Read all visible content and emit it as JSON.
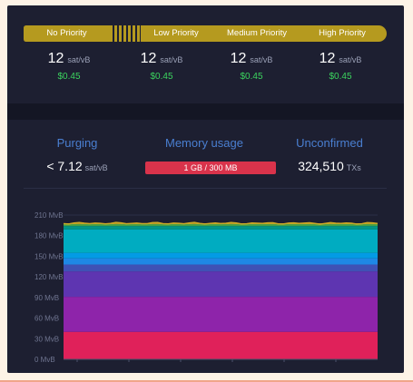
{
  "fees": {
    "tiers": [
      {
        "label": "No Priority"
      },
      {
        "label": "Low Priority",
        "value": "12",
        "unit": "sat/vB",
        "usd": "$0.45"
      },
      {
        "label": "Medium Priority",
        "value": "12",
        "unit": "sat/vB",
        "usd": "$0.45"
      },
      {
        "label": "High Priority",
        "value": "12",
        "unit": "sat/vB",
        "usd": "$0.45"
      }
    ],
    "no_priority": {
      "value": "12",
      "unit": "sat/vB",
      "usd": "$0.45"
    },
    "pill_color": "#b59a1f",
    "usd_color": "#3bd45e"
  },
  "mempool": {
    "purging": {
      "title": "Purging",
      "value": "< 7.12",
      "unit": "sat/vB"
    },
    "memory": {
      "title": "Memory usage",
      "value": "1 GB / 300 MB",
      "bar_color": "#d9334b"
    },
    "unconfirmed": {
      "title": "Unconfirmed",
      "value": "324,510",
      "unit": "TXs"
    }
  },
  "chart_data": {
    "type": "area",
    "stacked": true,
    "y_tick_labels": [
      "210 MvB",
      "180 MvB",
      "150 MvB",
      "120 MvB",
      "90 MvB",
      "60 MvB",
      "30 MvB",
      "0 MvB"
    ],
    "ylim": [
      0,
      210
    ],
    "y_unit": "MvB",
    "bands": [
      {
        "color": "#e0215a",
        "from": 0,
        "to": 40
      },
      {
        "color": "#8e24aa",
        "from": 40,
        "to": 91
      },
      {
        "color": "#5e35b1",
        "from": 91,
        "to": 128
      },
      {
        "color": "#3f51b5",
        "from": 128,
        "to": 138
      },
      {
        "color": "#1e88e5",
        "from": 138,
        "to": 147
      },
      {
        "color": "#039be5",
        "from": 147,
        "to": 155
      },
      {
        "color": "#00acc1",
        "from": 155,
        "to": 189
      },
      {
        "color": "#009688",
        "from": 189,
        "to": 194
      },
      {
        "color": "#43a047",
        "from": 194,
        "to": 197
      },
      {
        "color": "#c0a020",
        "from": 197,
        "to": 198
      }
    ]
  }
}
